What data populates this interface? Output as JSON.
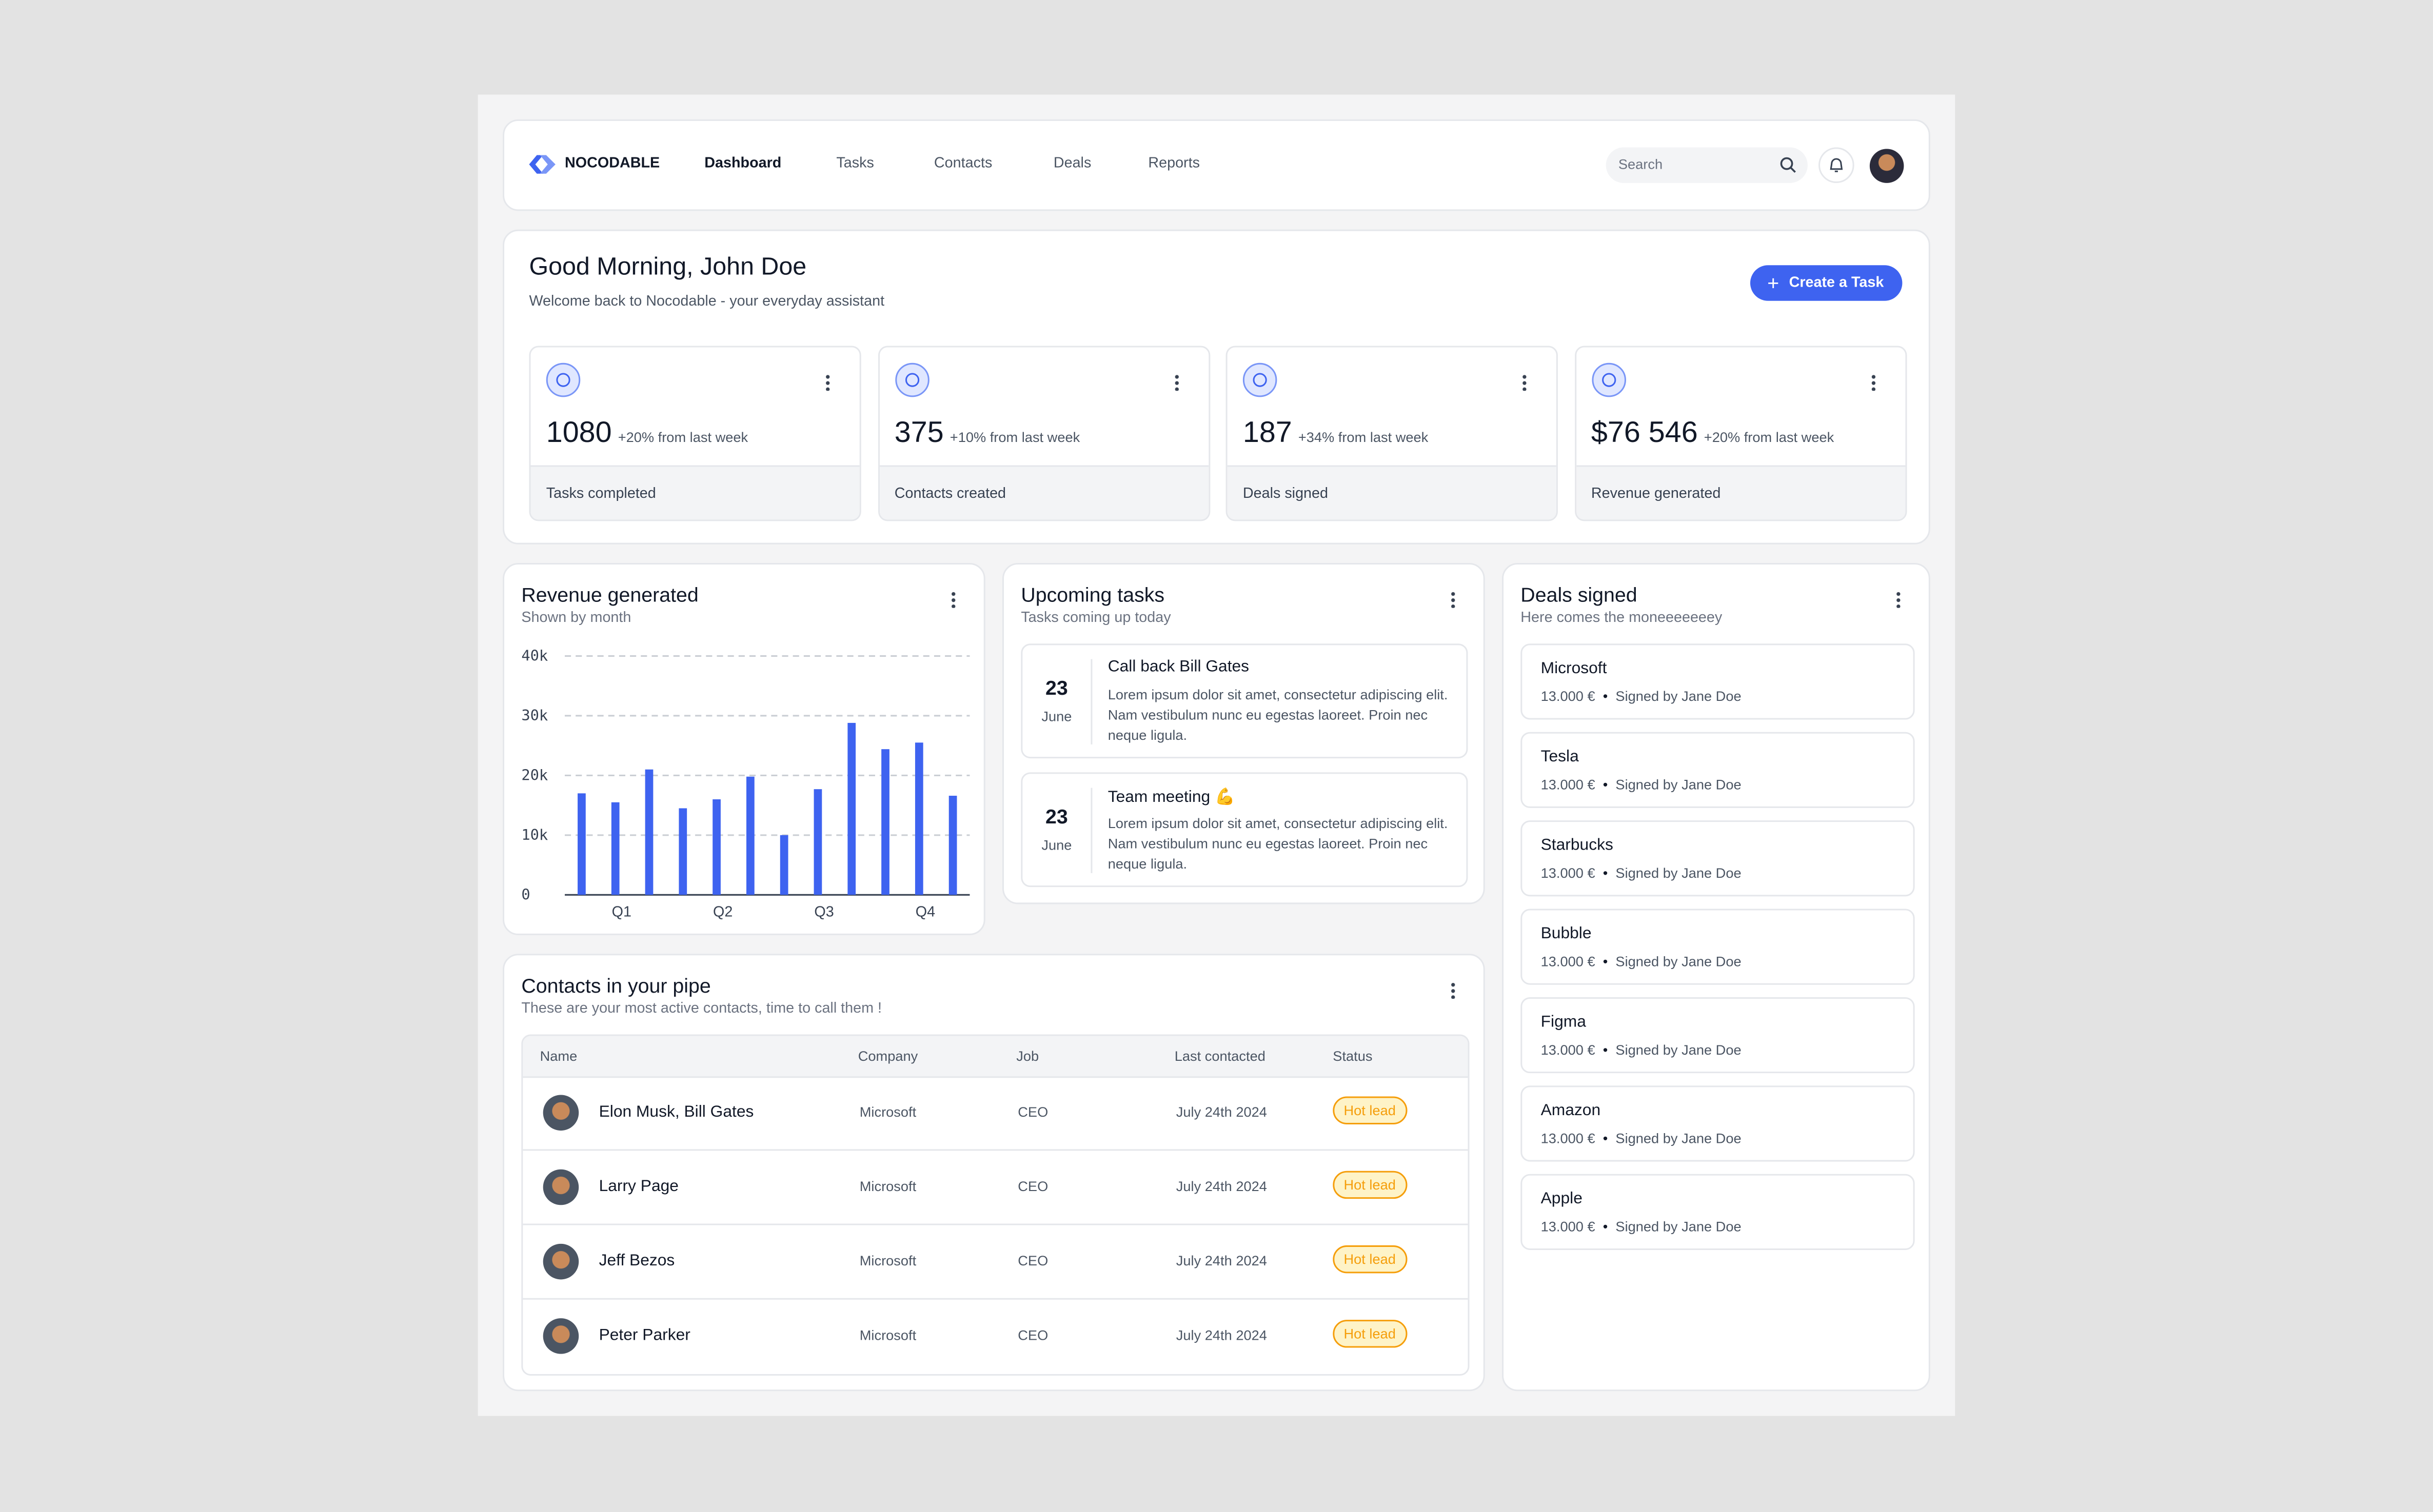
{
  "nav": {
    "brand": "NOCODABLE",
    "links": [
      "Dashboard",
      "Tasks",
      "Contacts",
      "Deals",
      "Reports"
    ],
    "search": "Search"
  },
  "header": {
    "greeting": "Good Morning, John Doe",
    "subtitle": "Welcome back to Nocodable - your everyday assistant",
    "button": "Create a Task"
  },
  "stats": [
    {
      "value": "1080",
      "change": "+20% from last week",
      "label": "Tasks completed"
    },
    {
      "value": "375",
      "change": "+10% from last week",
      "label": "Contacts created"
    },
    {
      "value": "187",
      "change": "+34% from last week",
      "label": "Deals signed"
    },
    {
      "value": "$76 546",
      "change": "+20% from last week",
      "label": "Revenue generated"
    }
  ],
  "revenue": {
    "title": "Revenue generated",
    "subtitle": "Shown by month",
    "chart": {
      "type": "bar",
      "color": "#3e63f0",
      "categories": [
        null,
        "Q1",
        null,
        null,
        "Q2",
        null,
        null,
        "Q3",
        null,
        null,
        "Q4",
        null
      ],
      "values": [
        17000,
        15500,
        21000,
        14500,
        16000,
        19800,
        10000,
        17700,
        28800,
        24400,
        25500,
        16600
      ],
      "ylim": [
        0,
        40000
      ],
      "yticks": [
        0,
        {
          "value": 10000,
          "label": "10k"
        },
        {
          "value": 20000,
          "label": "20k"
        },
        {
          "value": 30000,
          "label": "30k"
        },
        {
          "value": 40000,
          "label": "40k"
        }
      ],
      "grid": true
    }
  },
  "tasks": {
    "title": "Upcoming tasks",
    "subtitle": "Tasks coming up today",
    "items": [
      {
        "day": "23",
        "month": "June",
        "title": "Call back Bill Gates",
        "body": "Lorem ipsum dolor sit amet, consectetur adipiscing elit. Nam vestibulum nunc eu egestas laoreet. Proin nec neque ligula."
      },
      {
        "day": "23",
        "month": "June",
        "title": "Team meeting 💪",
        "body": "Lorem ipsum dolor sit amet, consectetur adipiscing elit. Nam vestibulum nunc eu egestas laoreet. Proin nec neque ligula."
      }
    ]
  },
  "deals": {
    "title": "Deals signed",
    "subtitle": "Here comes the moneeeeeeey",
    "items": [
      {
        "name": "Microsoft",
        "amount": "13.000 €",
        "signer": "Signed by Jane Doe"
      },
      {
        "name": "Tesla",
        "amount": "13.000 €",
        "signer": "Signed by Jane Doe"
      },
      {
        "name": "Starbucks",
        "amount": "13.000 €",
        "signer": "Signed by Jane Doe"
      },
      {
        "name": "Bubble",
        "amount": "13.000 €",
        "signer": "Signed by Jane Doe"
      },
      {
        "name": "Figma",
        "amount": "13.000 €",
        "signer": "Signed by Jane Doe"
      },
      {
        "name": "Amazon",
        "amount": "13.000 €",
        "signer": "Signed by Jane Doe"
      },
      {
        "name": "Apple",
        "amount": "13.000 €",
        "signer": "Signed by Jane Doe"
      }
    ]
  },
  "contacts": {
    "title": "Contacts in your pipe",
    "subtitle": "These are your most active contacts, time to call them !",
    "columns": [
      "Name",
      "Company",
      "Job",
      "Last contacted",
      "Status"
    ],
    "rows": [
      [
        "Elon Musk, Bill Gates",
        "Microsoft",
        "CEO",
        "July 24th 2024",
        "Hot lead"
      ],
      [
        "Larry Page",
        "Microsoft",
        "CEO",
        "July 24th 2024",
        "Hot lead"
      ],
      [
        "Jeff Bezos",
        "Microsoft",
        "CEO",
        "July 24th 2024",
        "Hot lead"
      ],
      [
        "Peter Parker",
        "Microsoft",
        "CEO",
        "July 24th 2024",
        "Hot lead"
      ]
    ]
  }
}
